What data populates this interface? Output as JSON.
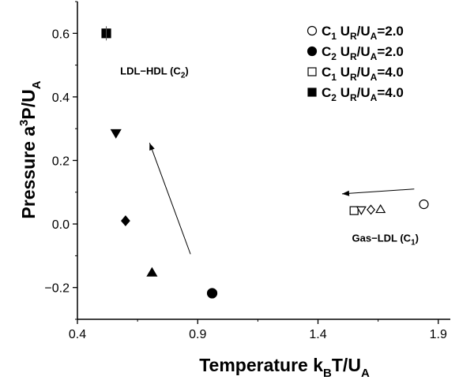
{
  "chart_data": {
    "type": "scatter",
    "xlabel": {
      "main": "Temperature  k",
      "sub1": "B",
      "mid": "T/U",
      "sub2": "A"
    },
    "ylabel": {
      "main": "Pressure a",
      "sup": "3",
      "mid": "P/U",
      "sub": "A"
    },
    "xlim": [
      0.4,
      1.95
    ],
    "ylim": [
      -0.3,
      0.7
    ],
    "xticks": [
      0.4,
      0.9,
      1.4,
      1.9
    ],
    "yticks": [
      -0.2,
      0.0,
      0.2,
      0.4,
      0.6
    ],
    "xtick_labels": [
      "0.4",
      "0.9",
      "1.4",
      "1.9"
    ],
    "ytick_labels": [
      "−0.2",
      "0.0",
      "0.2",
      "0.4",
      "0.6"
    ],
    "grid": false,
    "legend_position": "top-right",
    "legend": [
      {
        "marker": "open-circle",
        "pre": "C",
        "sub1": "1",
        "mid": " U",
        "sub2": "R",
        "mid2": "/U",
        "sub3": "A",
        "post": "=2.0"
      },
      {
        "marker": "filled-circle",
        "pre": "C",
        "sub1": "2",
        "mid": " U",
        "sub2": "R",
        "mid2": "/U",
        "sub3": "A",
        "post": "=2.0"
      },
      {
        "marker": "open-square",
        "pre": "C",
        "sub1": "1",
        "mid": " U",
        "sub2": "R",
        "mid2": "/U",
        "sub3": "A",
        "post": "=4.0"
      },
      {
        "marker": "filled-square",
        "pre": "C",
        "sub1": "2",
        "mid": " U",
        "sub2": "R",
        "mid2": "/U",
        "sub3": "A",
        "post": "=4.0"
      }
    ],
    "c1_points": [
      {
        "marker": "open-square",
        "x": 1.55,
        "y": 0.042
      },
      {
        "marker": "open-triangle-down",
        "x": 1.58,
        "y": 0.043
      },
      {
        "marker": "open-diamond",
        "x": 1.62,
        "y": 0.045
      },
      {
        "marker": "open-triangle-up",
        "x": 1.66,
        "y": 0.047
      },
      {
        "marker": "open-circle",
        "x": 1.84,
        "y": 0.062
      }
    ],
    "c2_points": [
      {
        "marker": "filled-square",
        "x": 0.52,
        "y": 0.6
      },
      {
        "marker": "filled-triangle-down",
        "x": 0.56,
        "y": 0.285
      },
      {
        "marker": "filled-diamond",
        "x": 0.6,
        "y": 0.01
      },
      {
        "marker": "filled-triangle-up",
        "x": 0.71,
        "y": -0.152
      },
      {
        "marker": "filled-circle",
        "x": 0.96,
        "y": -0.218
      }
    ],
    "arrows": [
      {
        "from": [
          0.87,
          -0.095
        ],
        "to": [
          0.7,
          0.255
        ]
      },
      {
        "from": [
          1.8,
          0.11
        ],
        "to": [
          1.5,
          0.095
        ]
      }
    ],
    "annotations": [
      {
        "main": "LDL−HDL (C",
        "sub": "2",
        "post": ")",
        "x": 0.72,
        "y": 0.47
      },
      {
        "main": "Gas−LDL (C",
        "sub": "1",
        "post": ")",
        "x": 1.68,
        "y": -0.055
      }
    ]
  }
}
